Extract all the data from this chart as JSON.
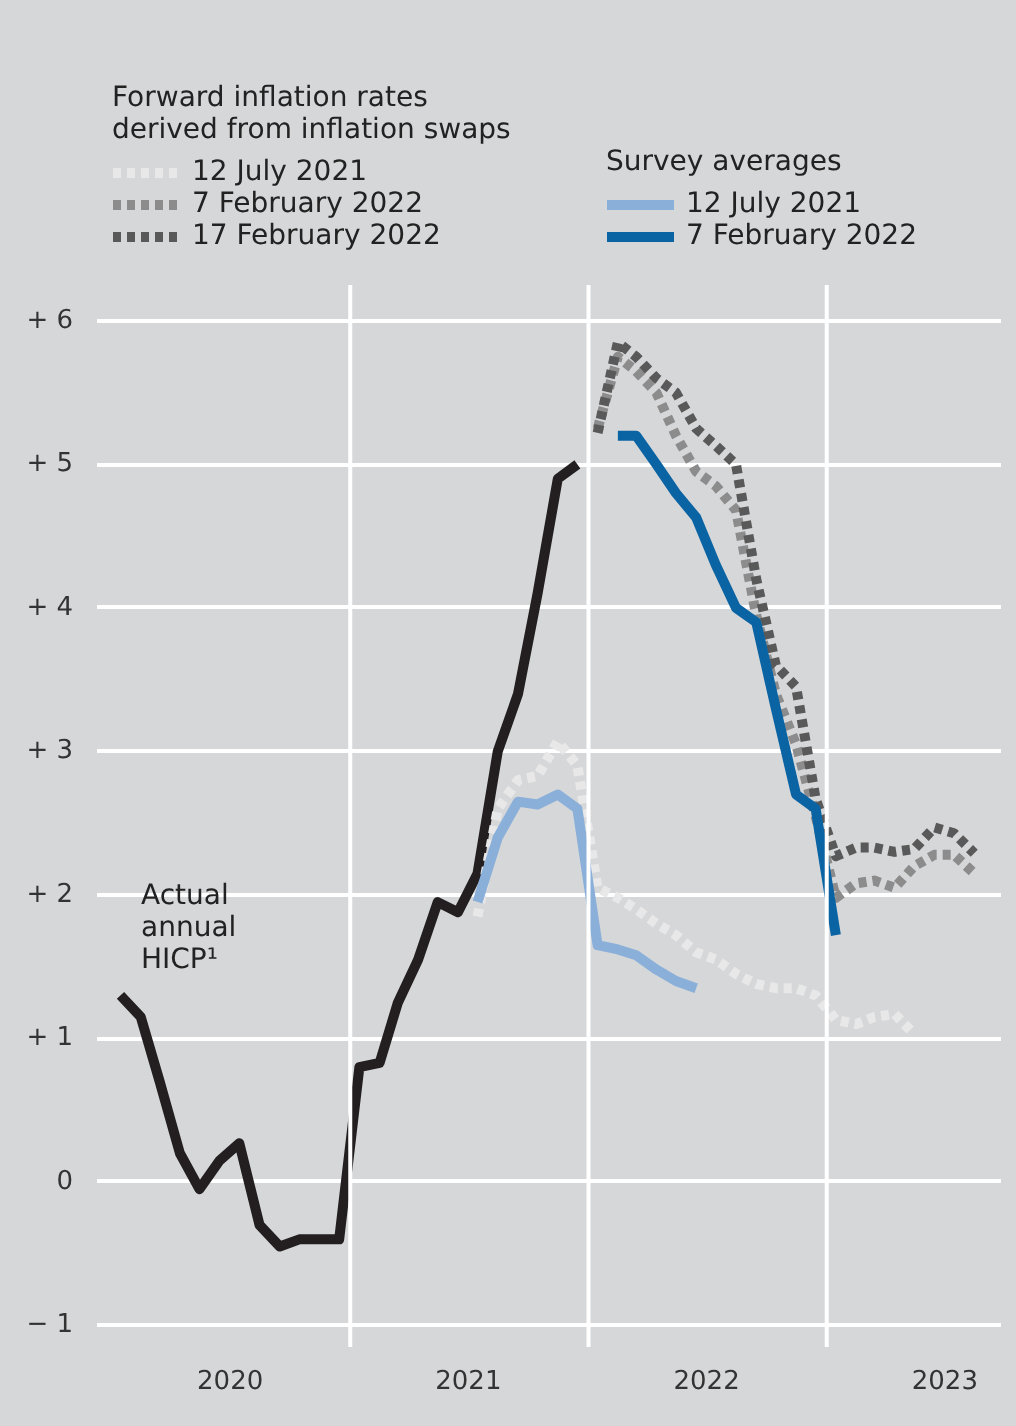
{
  "chart_data": {
    "type": "line",
    "legend_title": "Forward inflation rates derived from inflation swaps",
    "annotations": [
      "Survey averages",
      "Actual annual HICP¹"
    ],
    "series": [
      {
        "color": "#231f20",
        "line_style": "solid",
        "x": [
          "2020-01-15",
          "2020-02-15",
          "2020-03-15",
          "2020-04-15",
          "2020-05-15",
          "2020-06-15",
          "2020-07-15",
          "2020-08-15",
          "2020-09-15",
          "2020-10-15",
          "2020-11-15",
          "2020-12-15",
          "2021-01-15",
          "2021-02-15",
          "2021-03-15",
          "2021-04-15",
          "2021-05-15",
          "2021-06-15",
          "2021-07-15",
          "2021-08-15",
          "2021-09-15",
          "2021-10-15",
          "2021-11-15",
          "2021-12-15"
        ],
        "values": [
          1.3,
          1.15,
          0.7,
          0.2,
          -0.05,
          0.15,
          0.27,
          -0.3,
          -0.45,
          -0.4,
          -0.4,
          -0.4,
          0.8,
          0.83,
          1.25,
          1.55,
          1.95,
          1.88,
          2.15,
          3.0,
          3.4,
          4.1,
          4.9,
          5.0
        ]
      },
      {
        "name": "12 July 2021",
        "color": "#e8e8e8",
        "line_style": "dotted",
        "x": [
          "2021-07-15",
          "2021-08-15",
          "2021-09-15",
          "2021-10-15",
          "2021-11-15",
          "2021-12-15",
          "2022-01-15",
          "2022-02-15",
          "2022-03-15",
          "2022-04-15",
          "2022-05-15",
          "2022-06-15",
          "2022-07-15",
          "2022-08-15",
          "2022-09-15",
          "2022-10-15",
          "2022-11-15",
          "2022-12-15",
          "2023-01-15",
          "2023-02-15",
          "2023-03-15",
          "2023-04-15",
          "2023-05-15"
        ],
        "values": [
          1.85,
          2.6,
          2.8,
          2.83,
          3.07,
          2.9,
          2.05,
          1.98,
          1.9,
          1.8,
          1.72,
          1.6,
          1.55,
          1.45,
          1.38,
          1.35,
          1.35,
          1.3,
          1.13,
          1.1,
          1.15,
          1.17,
          1.03
        ]
      },
      {
        "name": "7 February 2022",
        "color": "#8c8c8c",
        "line_style": "dotted",
        "x": [
          "2022-01-15",
          "2022-02-15",
          "2022-03-15",
          "2022-04-15",
          "2022-05-15",
          "2022-06-15",
          "2022-07-15",
          "2022-08-15",
          "2022-09-15",
          "2022-10-15",
          "2022-11-15",
          "2022-12-15",
          "2023-01-15",
          "2023-02-15",
          "2023-03-15",
          "2023-04-15",
          "2023-05-15",
          "2023-06-15",
          "2023-07-15",
          "2023-08-15"
        ],
        "values": [
          5.25,
          5.75,
          5.65,
          5.5,
          5.2,
          4.95,
          4.85,
          4.68,
          3.95,
          3.4,
          3.05,
          2.55,
          1.98,
          2.08,
          2.1,
          2.05,
          2.2,
          2.28,
          2.28,
          2.15
        ]
      },
      {
        "name": "17 February 2022",
        "color": "#595959",
        "line_style": "dotted",
        "x": [
          "2022-01-15",
          "2022-02-15",
          "2022-03-15",
          "2022-04-15",
          "2022-05-15",
          "2022-06-15",
          "2022-07-15",
          "2022-08-15",
          "2022-09-15",
          "2022-10-15",
          "2022-11-15",
          "2022-12-15",
          "2023-01-15",
          "2023-02-15",
          "2023-03-15",
          "2023-04-15",
          "2023-05-15",
          "2023-06-15",
          "2023-07-15",
          "2023-08-15"
        ],
        "values": [
          5.22,
          5.85,
          5.75,
          5.6,
          5.5,
          5.25,
          5.13,
          5.0,
          4.2,
          3.6,
          3.45,
          2.67,
          2.27,
          2.33,
          2.33,
          2.3,
          2.32,
          2.47,
          2.43,
          2.29
        ]
      },
      {
        "name": "12 July 2021",
        "color": "#8aafd9",
        "line_style": "solid",
        "x": [
          "2021-07-15",
          "2021-08-15",
          "2021-09-15",
          "2021-10-15",
          "2021-11-15",
          "2021-12-15",
          "2022-01-15",
          "2022-02-15",
          "2022-03-15",
          "2022-04-15",
          "2022-05-15",
          "2022-06-15"
        ],
        "values": [
          1.95,
          2.4,
          2.65,
          2.63,
          2.7,
          2.6,
          1.65,
          1.62,
          1.58,
          1.48,
          1.4,
          1.35
        ]
      },
      {
        "name": "7 February 2022",
        "color": "#0a63a3",
        "line_style": "solid",
        "x": [
          "2022-02-15",
          "2022-03-15",
          "2022-04-15",
          "2022-05-15",
          "2022-06-15",
          "2022-07-15",
          "2022-08-15",
          "2022-09-15",
          "2022-10-15",
          "2022-11-15",
          "2022-12-15",
          "2023-01-15"
        ],
        "values": [
          5.2,
          5.2,
          5.0,
          4.8,
          4.63,
          4.3,
          4.0,
          3.9,
          3.3,
          2.7,
          2.6,
          1.72
        ]
      }
    ],
    "xlim": [
      "2019-12-10",
      "2023-09-25"
    ],
    "xticks": [
      {
        "value": "2020-07-01",
        "label": "2020"
      },
      {
        "value": "2021-07-01",
        "label": "2021"
      },
      {
        "value": "2022-07-01",
        "label": "2022"
      },
      {
        "value": "2023-07-01",
        "label": "2023"
      }
    ],
    "ylim": [
      -1.15,
      6.25
    ],
    "yticks": [
      {
        "value": -1,
        "label": "− 1"
      },
      0,
      {
        "value": 1,
        "label": "+ 1"
      },
      {
        "value": 2,
        "label": "+ 2"
      },
      {
        "value": 3,
        "label": "+ 3"
      },
      {
        "value": 4,
        "label": "+ 4"
      },
      {
        "value": 5,
        "label": "+ 5"
      },
      {
        "value": 6,
        "label": "+ 6"
      }
    ],
    "ref_lines": [
      {
        "axis": "x",
        "value": "2021-01-01",
        "color": "#ffffff"
      },
      {
        "axis": "x",
        "value": "2022-01-01",
        "color": "#ffffff"
      },
      {
        "axis": "x",
        "value": "2023-01-01",
        "color": "#ffffff"
      }
    ],
    "grid": "y",
    "legend": "top",
    "marker": "none"
  }
}
